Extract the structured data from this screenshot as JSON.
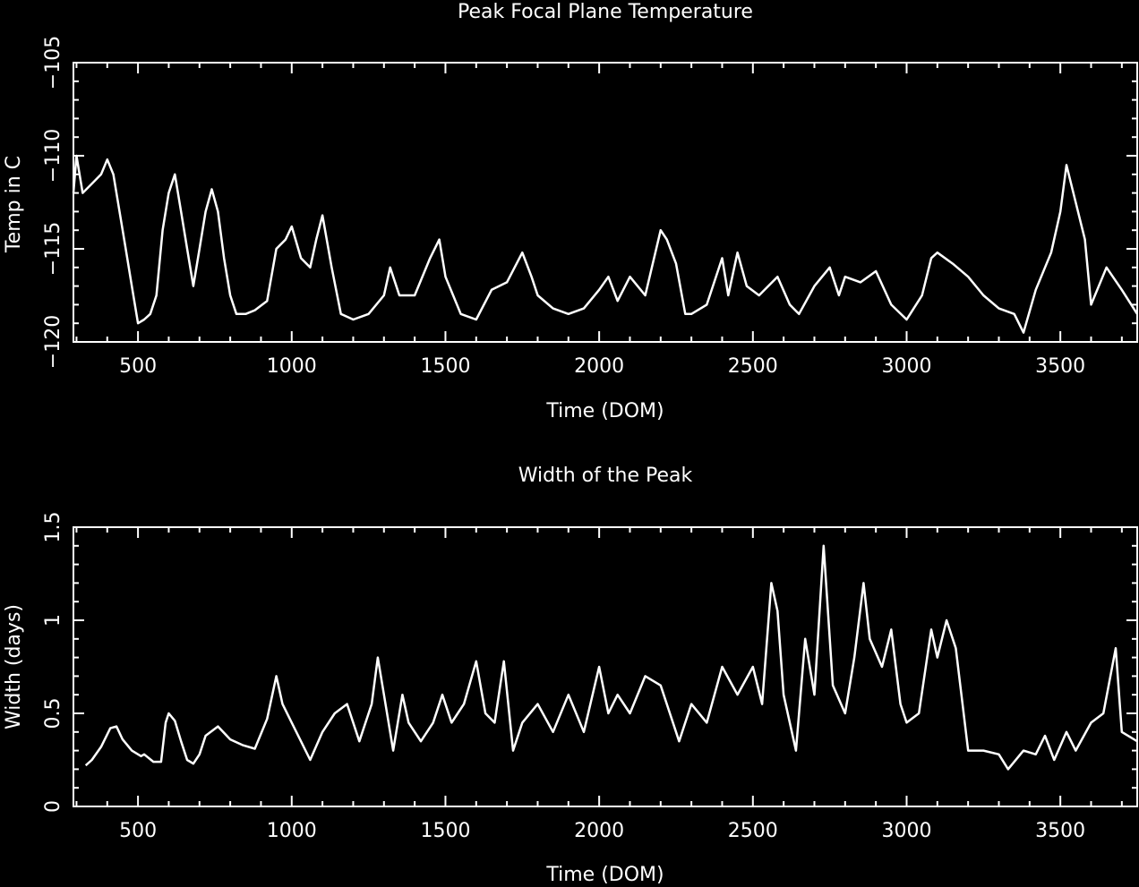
{
  "chart_data": [
    {
      "type": "line",
      "title": "Peak Focal Plane Temperature",
      "xlabel": "Time (DOM)",
      "ylabel": "Temp in C",
      "xlim": [
        290,
        3750
      ],
      "ylim": [
        -120,
        -105
      ],
      "xticks": [
        500,
        1000,
        1500,
        2000,
        2500,
        3000,
        3500
      ],
      "yticks": [
        -120,
        -115,
        -110,
        -105
      ],
      "grid": false,
      "series": [
        {
          "x": [
            290,
            300,
            320,
            350,
            380,
            400,
            420,
            440,
            460,
            480,
            500,
            520,
            540,
            560,
            580,
            600,
            620,
            640,
            660,
            680,
            700,
            720,
            740,
            760,
            780,
            800,
            820,
            850,
            880,
            920,
            950,
            980,
            1000,
            1030,
            1060,
            1080,
            1100,
            1130,
            1160,
            1200,
            1250,
            1300,
            1320,
            1350,
            1400,
            1450,
            1480,
            1500,
            1550,
            1600,
            1650,
            1700,
            1750,
            1780,
            1800,
            1850,
            1900,
            1950,
            2000,
            2030,
            2060,
            2100,
            2150,
            2200,
            2220,
            2250,
            2280,
            2300,
            2350,
            2400,
            2420,
            2450,
            2480,
            2520,
            2550,
            2580,
            2620,
            2650,
            2700,
            2750,
            2780,
            2800,
            2850,
            2900,
            2950,
            3000,
            3050,
            3080,
            3100,
            3150,
            3200,
            3250,
            3300,
            3350,
            3380,
            3420,
            3470,
            3500,
            3520,
            3550,
            3580,
            3600,
            3650,
            3700,
            3750
          ],
          "values": [
            -112,
            -110,
            -112,
            -111.5,
            -111,
            -110.2,
            -111,
            -113,
            -115,
            -117,
            -119,
            -118.8,
            -118.5,
            -117.5,
            -114,
            -112,
            -111,
            -113,
            -115,
            -117,
            -115,
            -113,
            -111.8,
            -113,
            -115.5,
            -117.5,
            -118.5,
            -118.5,
            -118.3,
            -117.8,
            -115,
            -114.5,
            -113.8,
            -115.5,
            -116,
            -114.5,
            -113.2,
            -116,
            -118.5,
            -118.8,
            -118.5,
            -117.5,
            -116,
            -117.5,
            -117.5,
            -115.5,
            -114.5,
            -116.5,
            -118.5,
            -118.8,
            -117.2,
            -116.8,
            -115.2,
            -116.5,
            -117.5,
            -118.2,
            -118.5,
            -118.2,
            -117.2,
            -116.5,
            -117.8,
            -116.5,
            -117.5,
            -114,
            -114.5,
            -115.8,
            -118.5,
            -118.5,
            -118,
            -115.5,
            -117.5,
            -115.2,
            -117,
            -117.5,
            -117,
            -116.5,
            -118,
            -118.5,
            -117,
            -116,
            -117.5,
            -116.5,
            -116.8,
            -116.2,
            -118,
            -118.8,
            -117.5,
            -115.5,
            -115.2,
            -115.8,
            -116.5,
            -117.5,
            -118.2,
            -118.5,
            -119.5,
            -117.2,
            -115.2,
            -113,
            -110.5,
            -112.5,
            -114.5,
            -118,
            -116,
            -117.2,
            -118.5
          ]
        }
      ]
    },
    {
      "type": "line",
      "title": "Width of the Peak",
      "xlabel": "Time (DOM)",
      "ylabel": "Width (days)",
      "xlim": [
        290,
        3750
      ],
      "ylim": [
        0,
        1.5
      ],
      "xticks": [
        500,
        1000,
        1500,
        2000,
        2500,
        3000,
        3500
      ],
      "yticks": [
        0,
        0.5,
        1,
        1.5
      ],
      "ytick_labels": [
        "0",
        "0.5",
        "1",
        "1.5"
      ],
      "grid": false,
      "series": [
        {
          "x": [
            330,
            350,
            380,
            410,
            430,
            450,
            480,
            510,
            520,
            550,
            560,
            575,
            590,
            600,
            620,
            640,
            660,
            680,
            700,
            720,
            760,
            800,
            840,
            880,
            920,
            950,
            970,
            1000,
            1030,
            1060,
            1100,
            1140,
            1180,
            1220,
            1260,
            1280,
            1300,
            1330,
            1360,
            1380,
            1420,
            1460,
            1490,
            1520,
            1560,
            1600,
            1630,
            1660,
            1690,
            1720,
            1750,
            1800,
            1850,
            1900,
            1950,
            2000,
            2030,
            2060,
            2100,
            2150,
            2200,
            2230,
            2260,
            2300,
            2350,
            2400,
            2450,
            2500,
            2530,
            2560,
            2580,
            2600,
            2640,
            2670,
            2700,
            2730,
            2760,
            2800,
            2830,
            2860,
            2880,
            2920,
            2950,
            2980,
            3000,
            3040,
            3080,
            3100,
            3130,
            3160,
            3200,
            3250,
            3300,
            3330,
            3380,
            3420,
            3450,
            3480,
            3520,
            3550,
            3600,
            3640,
            3680,
            3700,
            3750
          ],
          "values": [
            0.22,
            0.25,
            0.32,
            0.42,
            0.43,
            0.36,
            0.3,
            0.27,
            0.28,
            0.24,
            0.24,
            0.24,
            0.45,
            0.5,
            0.46,
            0.35,
            0.25,
            0.23,
            0.28,
            0.38,
            0.43,
            0.36,
            0.33,
            0.31,
            0.47,
            0.7,
            0.55,
            0.45,
            0.35,
            0.25,
            0.4,
            0.5,
            0.55,
            0.35,
            0.55,
            0.8,
            0.6,
            0.3,
            0.6,
            0.45,
            0.35,
            0.45,
            0.6,
            0.45,
            0.55,
            0.78,
            0.5,
            0.45,
            0.78,
            0.3,
            0.45,
            0.55,
            0.4,
            0.6,
            0.4,
            0.75,
            0.5,
            0.6,
            0.5,
            0.7,
            0.65,
            0.5,
            0.35,
            0.55,
            0.45,
            0.75,
            0.6,
            0.75,
            0.55,
            1.2,
            1.05,
            0.6,
            0.3,
            0.9,
            0.6,
            1.4,
            0.65,
            0.5,
            0.8,
            1.2,
            0.9,
            0.75,
            0.95,
            0.55,
            0.45,
            0.5,
            0.95,
            0.8,
            1.0,
            0.85,
            0.3,
            0.3,
            0.28,
            0.2,
            0.3,
            0.28,
            0.38,
            0.25,
            0.4,
            0.3,
            0.45,
            0.5,
            0.85,
            0.4,
            0.35
          ]
        }
      ]
    }
  ]
}
